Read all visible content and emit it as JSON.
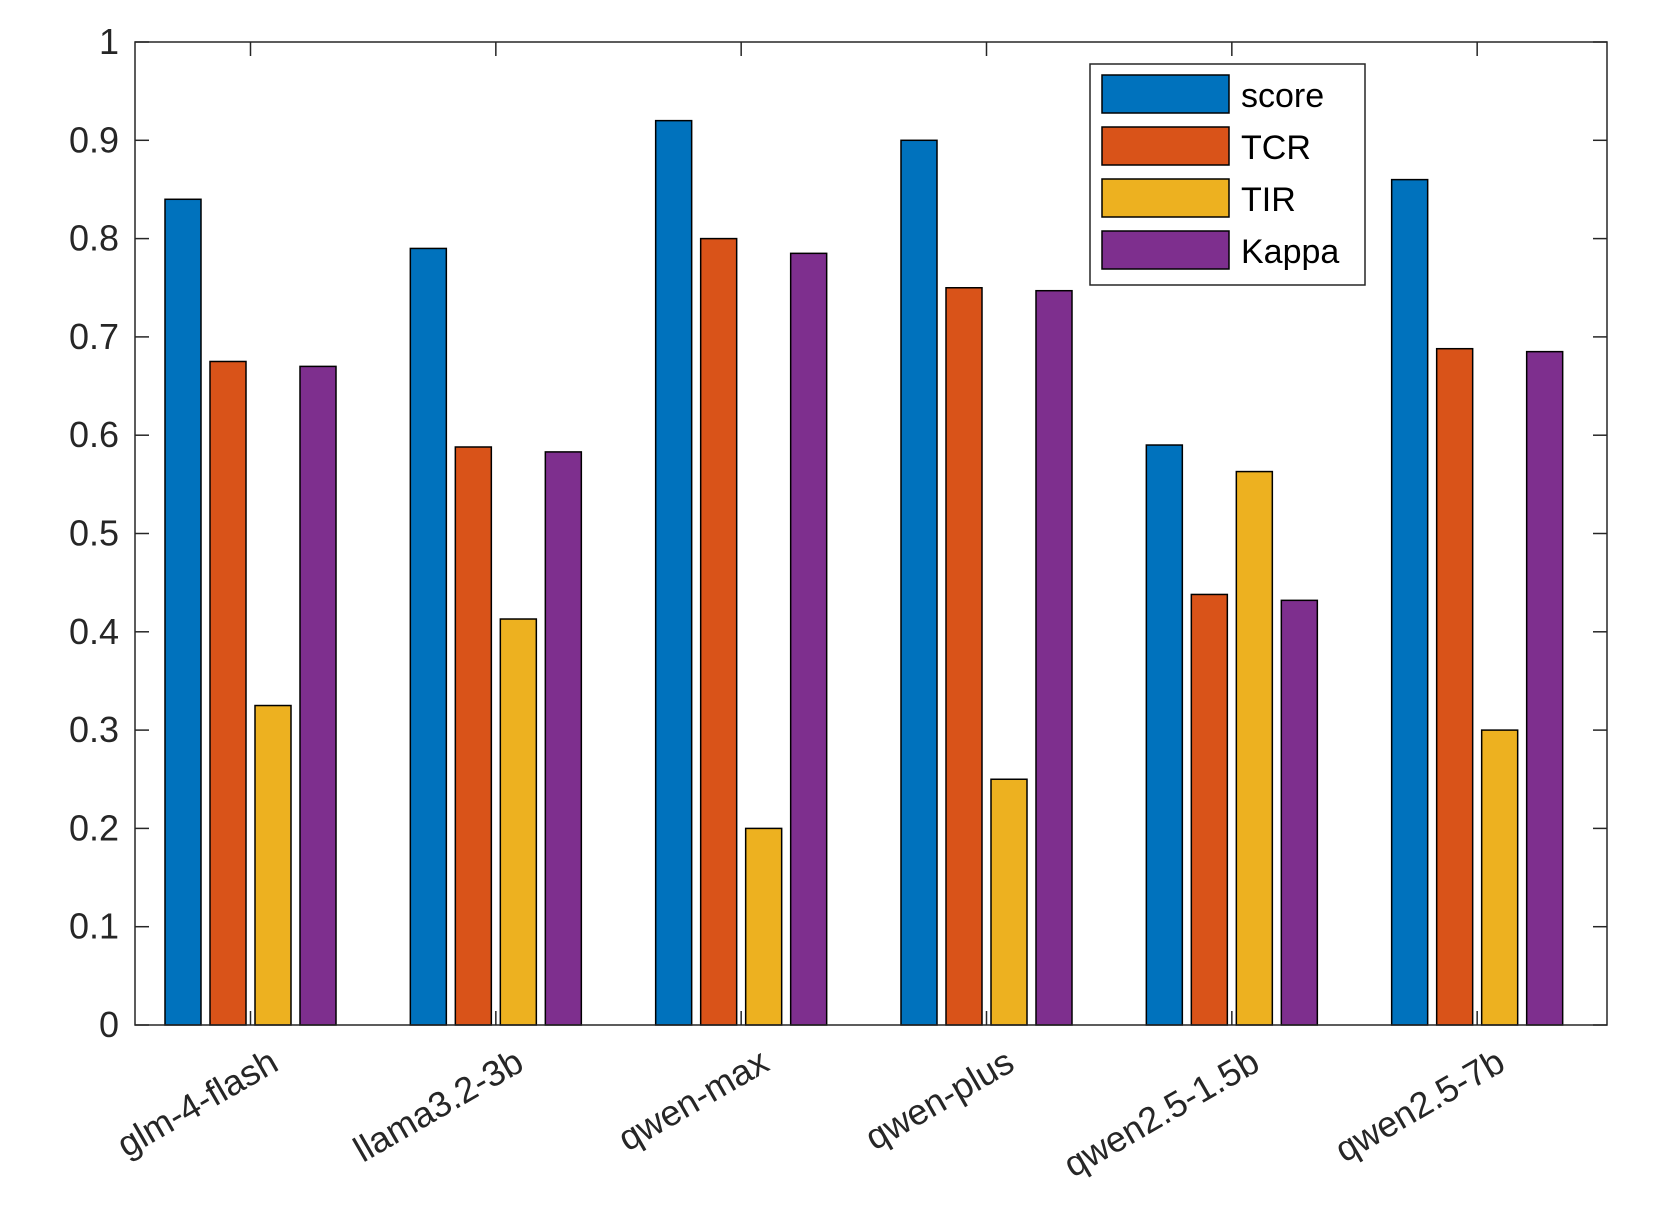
{
  "chart_data": {
    "type": "bar",
    "title": "",
    "xlabel": "",
    "ylabel": "",
    "ylim": [
      0,
      1
    ],
    "yticks": [
      "0",
      "0.1",
      "0.2",
      "0.3",
      "0.4",
      "0.5",
      "0.6",
      "0.7",
      "0.8",
      "0.9",
      "1"
    ],
    "categories": [
      "glm-4-flash",
      "llama3.2-3b",
      "qwen-max",
      "qwen-plus",
      "qwen2.5-1.5b",
      "qwen2.5-7b"
    ],
    "series": [
      {
        "name": "score",
        "color": "#0072BD",
        "values": [
          0.84,
          0.79,
          0.92,
          0.9,
          0.59,
          0.86
        ]
      },
      {
        "name": "TCR",
        "color": "#D95319",
        "values": [
          0.675,
          0.588,
          0.8,
          0.75,
          0.438,
          0.688
        ]
      },
      {
        "name": "TIR",
        "color": "#EDB120",
        "values": [
          0.325,
          0.413,
          0.2,
          0.25,
          0.563,
          0.3
        ]
      },
      {
        "name": "Kappa",
        "color": "#7E2F8E",
        "values": [
          0.67,
          0.583,
          0.785,
          0.747,
          0.432,
          0.685
        ]
      }
    ],
    "legend": "top-right",
    "grid": false
  }
}
